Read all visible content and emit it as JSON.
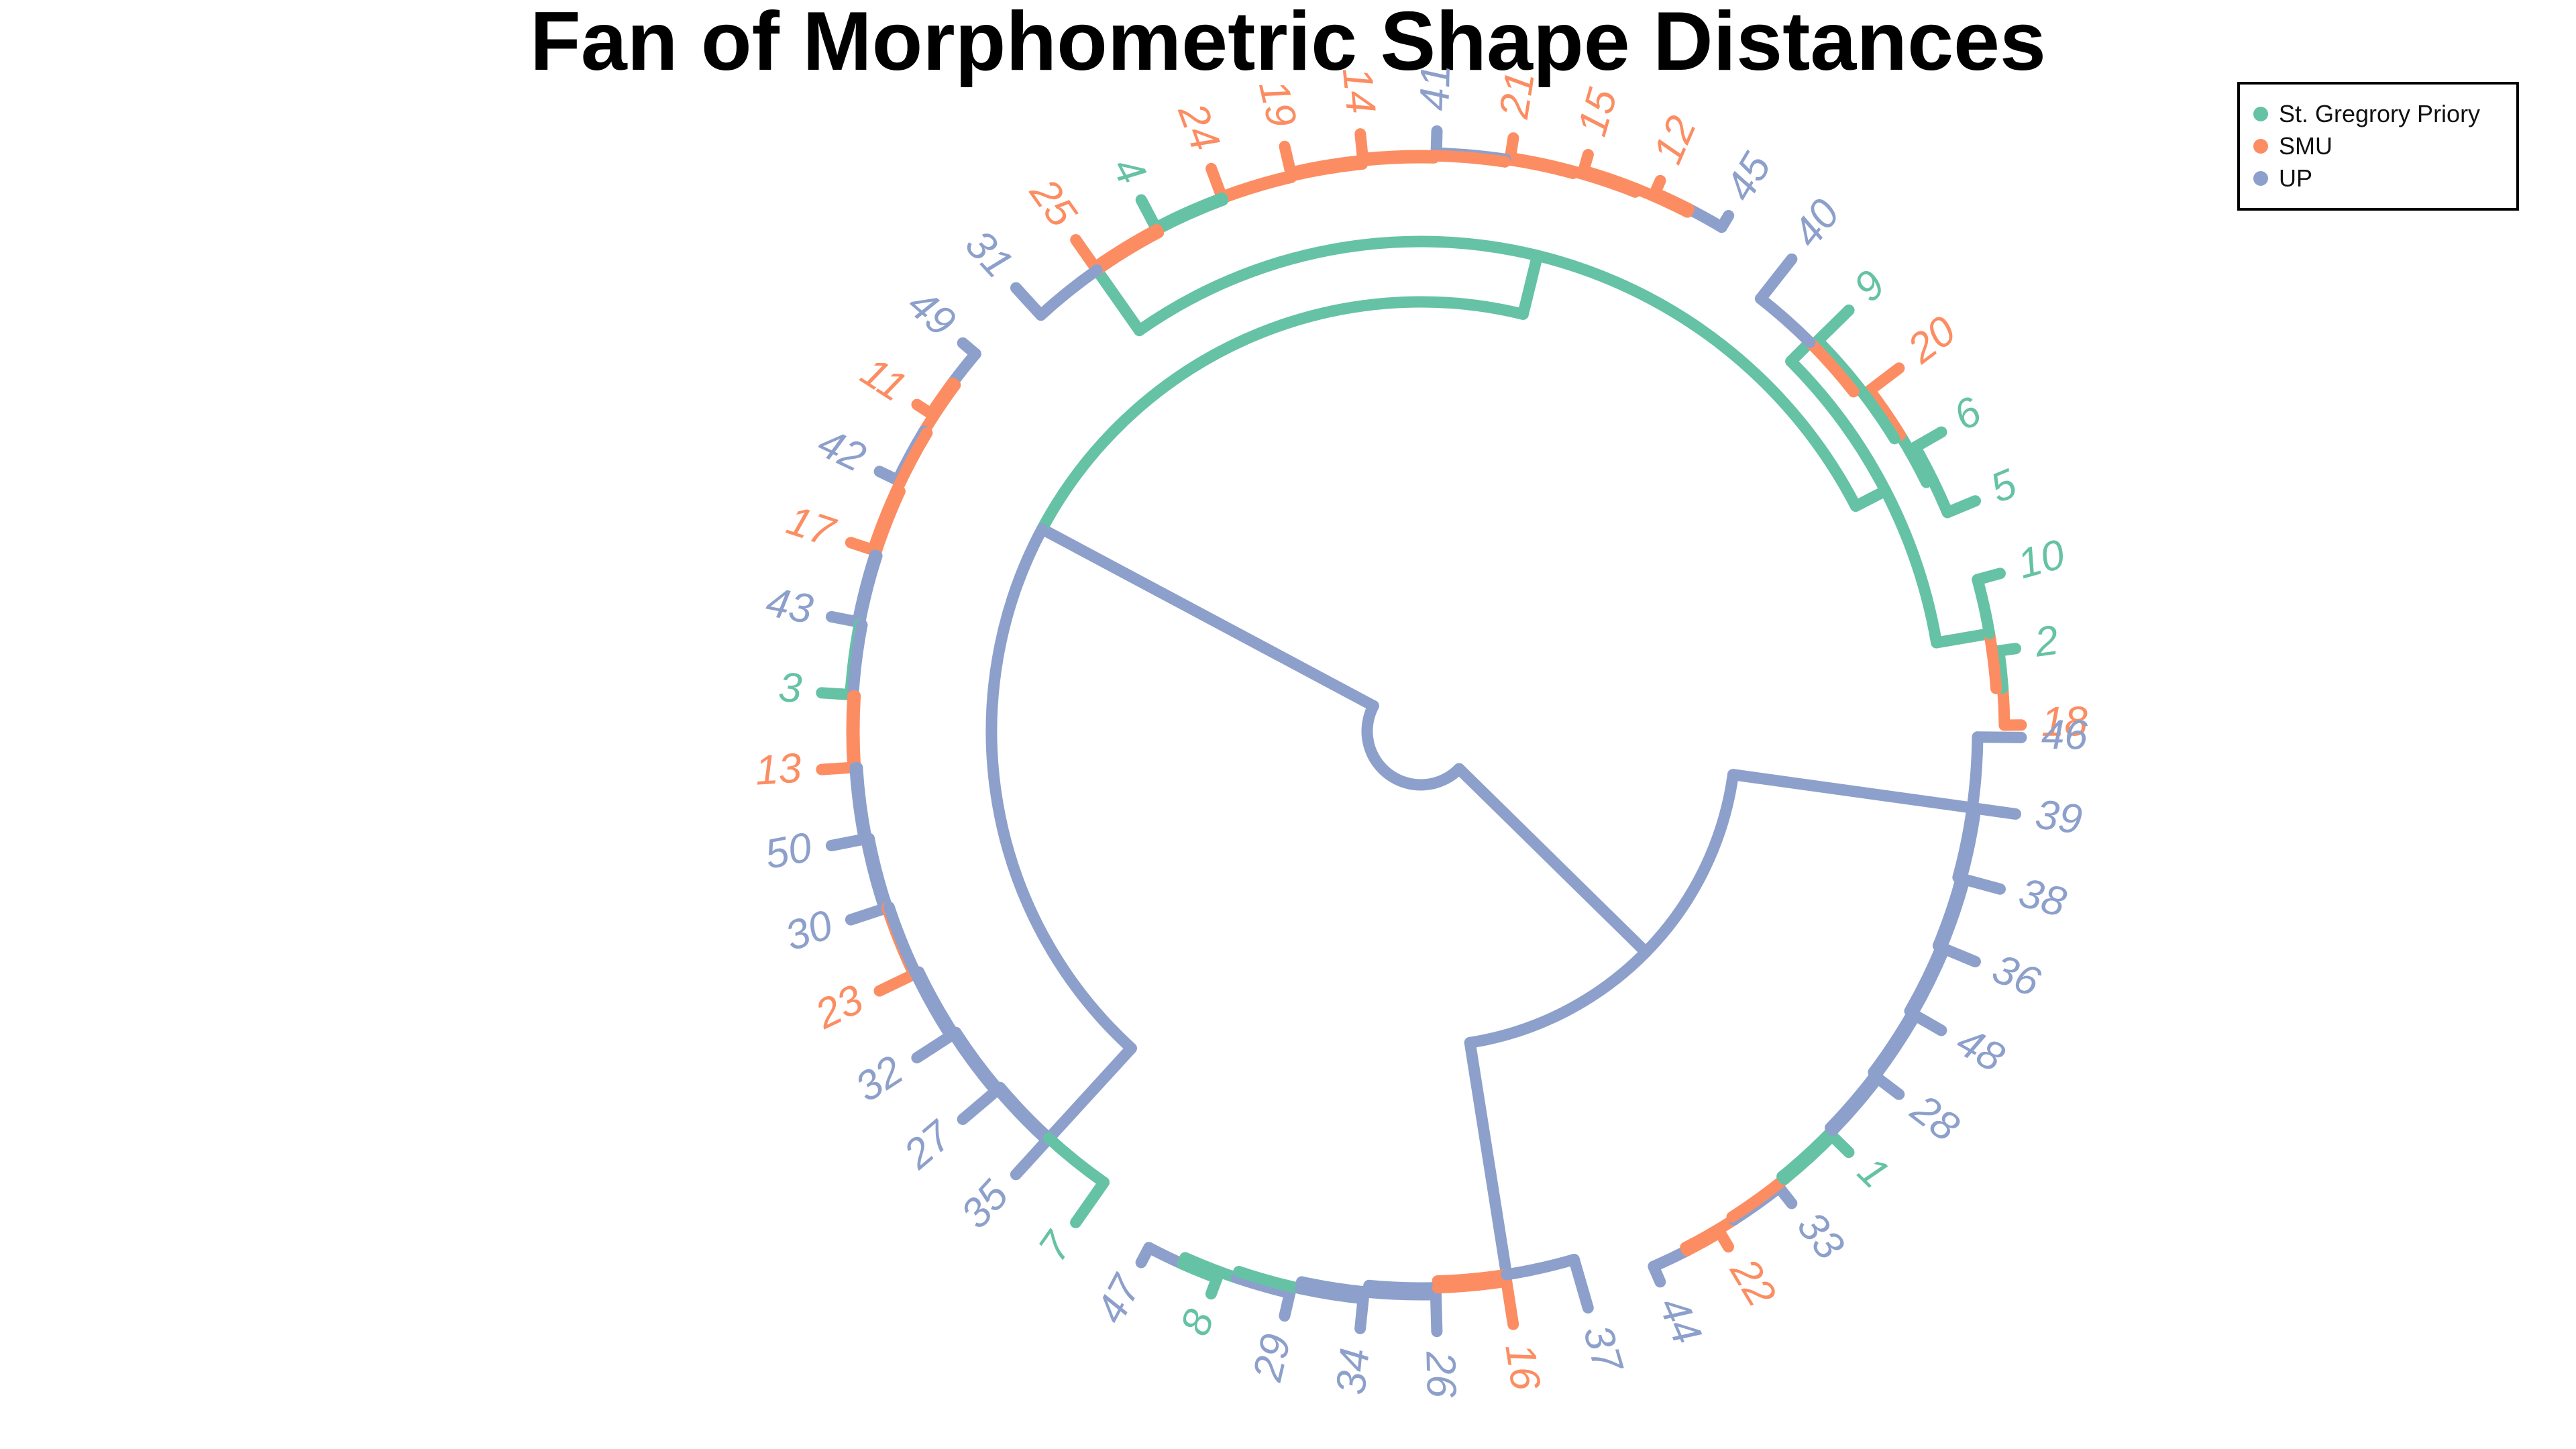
{
  "title": "Fan of Morphometric Shape Distances",
  "legend": [
    {
      "label": "St. Gregrory Priory",
      "color": "#66c2a5",
      "group": "sgp"
    },
    {
      "label": "SMU",
      "color": "#fc8d62",
      "group": "smu"
    },
    {
      "label": "UP",
      "color": "#8da0cb",
      "group": "up"
    }
  ],
  "colors": {
    "sgp": "#66c2a5",
    "smu": "#fc8d62",
    "up": "#8da0cb"
  },
  "tips": [
    {
      "label": "18",
      "group": "smu"
    },
    {
      "label": "2",
      "group": "sgp"
    },
    {
      "label": "10",
      "group": "sgp"
    },
    {
      "label": "5",
      "group": "sgp"
    },
    {
      "label": "6",
      "group": "sgp"
    },
    {
      "label": "20",
      "group": "smu"
    },
    {
      "label": "9",
      "group": "sgp"
    },
    {
      "label": "40",
      "group": "up"
    },
    {
      "label": "45",
      "group": "up"
    },
    {
      "label": "12",
      "group": "smu"
    },
    {
      "label": "15",
      "group": "smu"
    },
    {
      "label": "21",
      "group": "smu"
    },
    {
      "label": "41",
      "group": "up"
    },
    {
      "label": "14",
      "group": "smu"
    },
    {
      "label": "19",
      "group": "smu"
    },
    {
      "label": "24",
      "group": "smu"
    },
    {
      "label": "4",
      "group": "sgp"
    },
    {
      "label": "25",
      "group": "smu"
    },
    {
      "label": "31",
      "group": "up"
    },
    {
      "label": "49",
      "group": "up"
    },
    {
      "label": "11",
      "group": "smu"
    },
    {
      "label": "42",
      "group": "up"
    },
    {
      "label": "17",
      "group": "smu"
    },
    {
      "label": "43",
      "group": "up"
    },
    {
      "label": "3",
      "group": "sgp"
    },
    {
      "label": "13",
      "group": "smu"
    },
    {
      "label": "50",
      "group": "up"
    },
    {
      "label": "30",
      "group": "up"
    },
    {
      "label": "23",
      "group": "smu"
    },
    {
      "label": "32",
      "group": "up"
    },
    {
      "label": "27",
      "group": "up"
    },
    {
      "label": "35",
      "group": "up"
    },
    {
      "label": "7",
      "group": "sgp"
    },
    {
      "label": "47",
      "group": "up"
    },
    {
      "label": "8",
      "group": "sgp"
    },
    {
      "label": "29",
      "group": "up"
    },
    {
      "label": "34",
      "group": "up"
    },
    {
      "label": "26",
      "group": "up"
    },
    {
      "label": "16",
      "group": "smu"
    },
    {
      "label": "37",
      "group": "up"
    },
    {
      "label": "44",
      "group": "up"
    },
    {
      "label": "22",
      "group": "smu"
    },
    {
      "label": "33",
      "group": "up"
    },
    {
      "label": "1",
      "group": "sgp"
    },
    {
      "label": "28",
      "group": "up"
    },
    {
      "label": "48",
      "group": "up"
    },
    {
      "label": "36",
      "group": "up"
    },
    {
      "label": "38",
      "group": "up"
    },
    {
      "label": "39",
      "group": "up"
    },
    {
      "label": "46",
      "group": "up"
    }
  ]
}
